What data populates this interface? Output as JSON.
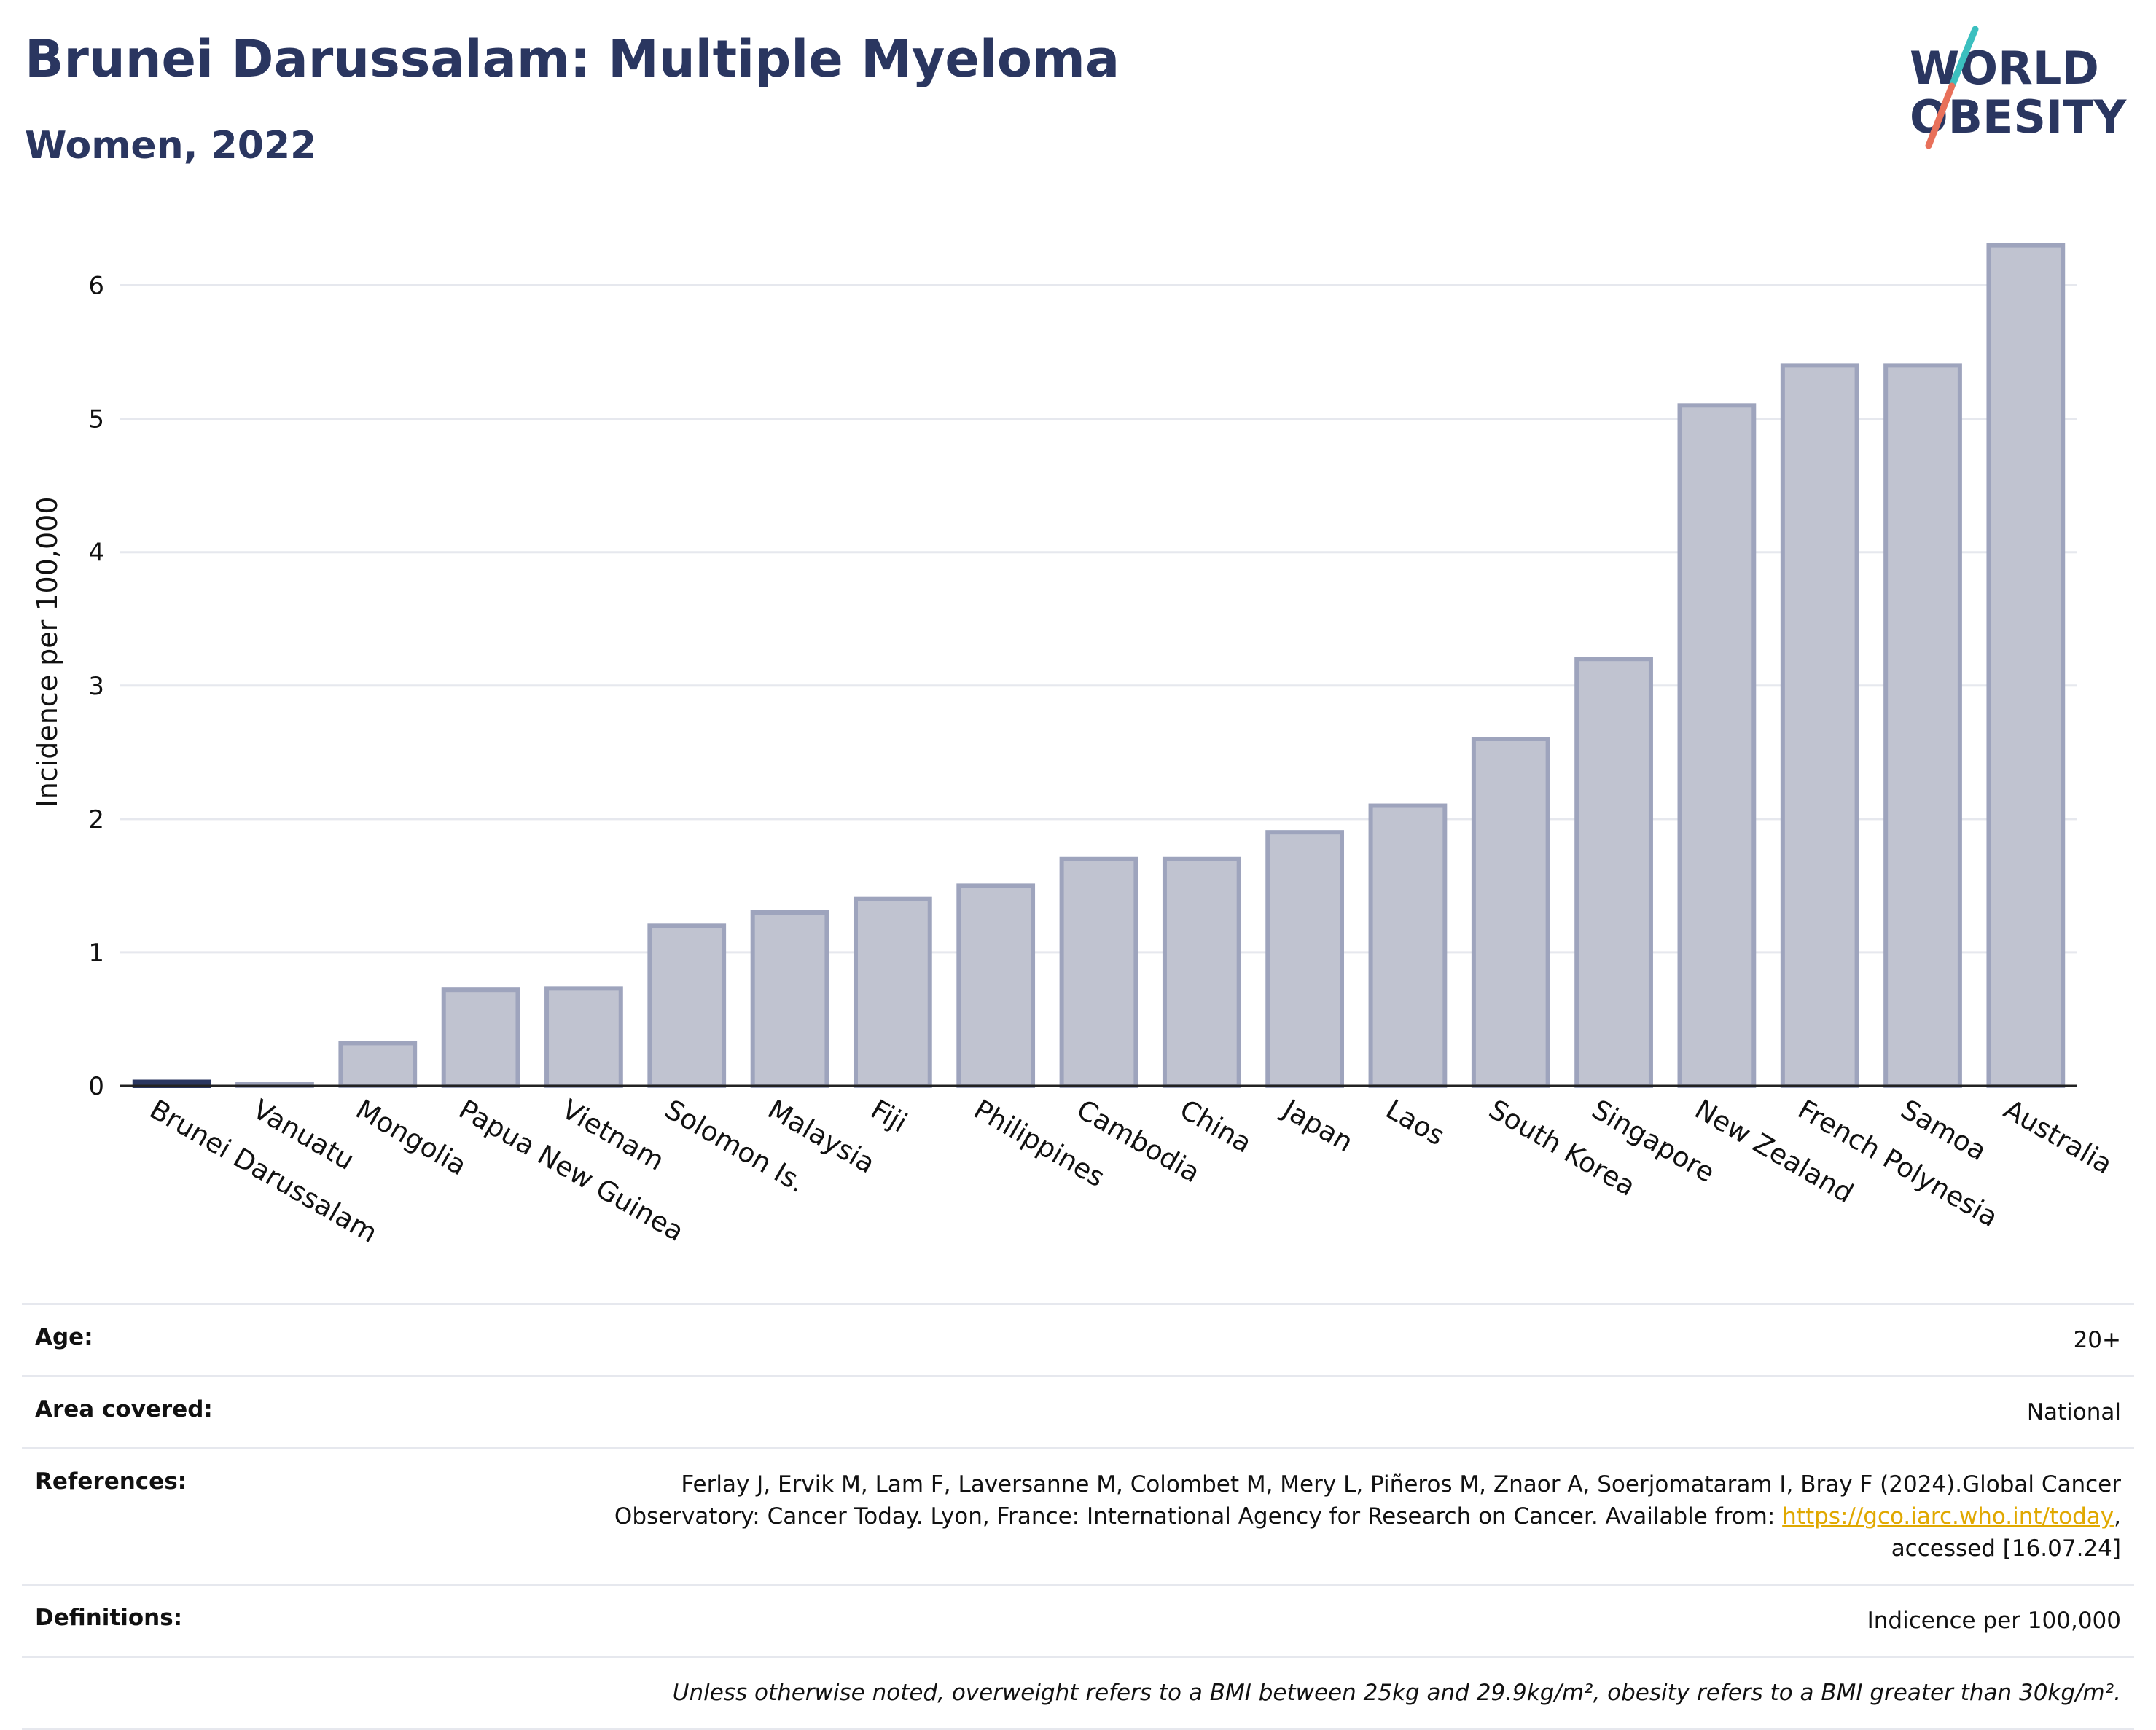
{
  "header": {
    "title": "Brunei Darussalam: Multiple Myeloma",
    "subtitle": "Women, 2022"
  },
  "logo": {
    "line1": "WORLD",
    "line2": "OBESITY",
    "colors": {
      "text": "#2a3660",
      "slash_top": "#3bbfbf",
      "slash_bottom": "#e8705a"
    }
  },
  "chart_data": {
    "type": "bar",
    "ylabel": "Incidence per 100,000",
    "ylim": [
      0,
      6.5
    ],
    "yticks": [
      0,
      1,
      2,
      3,
      4,
      5,
      6
    ],
    "grid": true,
    "categories": [
      "Brunei Darussalam",
      "Vanuatu",
      "Mongolia",
      "Papua New Guinea",
      "Vietnam",
      "Solomon Is.",
      "Malaysia",
      "Fiji",
      "Philippines",
      "Cambodia",
      "China",
      "Japan",
      "Laos",
      "South Korea",
      "Singapore",
      "New Zealand",
      "French Polynesia",
      "Samoa",
      "Australia"
    ],
    "values": [
      0.03,
      0.01,
      0.32,
      0.72,
      0.73,
      1.2,
      1.3,
      1.4,
      1.5,
      1.7,
      1.7,
      1.9,
      2.1,
      2.6,
      3.2,
      5.1,
      5.4,
      5.4,
      6.3
    ],
    "highlight": "Brunei Darussalam",
    "colors": {
      "bar_fill": "#c0c3d0",
      "bar_stroke": "#9ea4bd",
      "highlight": "#2a3660",
      "grid": "#e6e8ee",
      "axis": "#222222"
    }
  },
  "info": {
    "age": {
      "label": "Age:",
      "value": "20+"
    },
    "area": {
      "label": "Area covered:",
      "value": "National"
    },
    "references": {
      "label": "References:",
      "text1": "Ferlay J, Ervik M, Lam F, Laversanne M, Colombet M, Mery L, Piñeros M, Znaor A, Soerjomataram I, Bray F (2024).Global Cancer",
      "text2": "Observatory: Cancer Today. Lyon, France: International Agency for Research on Cancer. Available from: ",
      "link": "https://gco.iarc.who.int/today",
      "text3": ",",
      "text4": "accessed [16.07.24]"
    },
    "definitions": {
      "label": "Definitions:",
      "value": "Indicence per 100,000"
    },
    "note": "Unless otherwise noted, overweight refers to a BMI between 25kg and 29.9kg/m², obesity refers to a BMI greater than 30kg/m²."
  }
}
